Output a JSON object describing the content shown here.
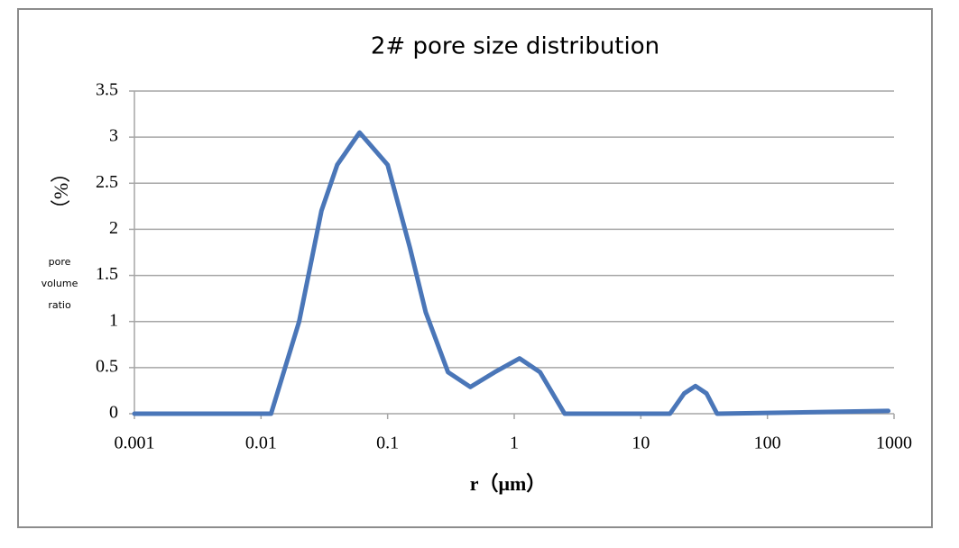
{
  "chart_data": {
    "type": "line",
    "title": "2# pore size distribution",
    "xlabel": "r（μm）",
    "ylabel_unit": "（%）",
    "ylabel_lines": [
      "pore",
      "volume",
      "ratio"
    ],
    "xscale": "log",
    "grid": true,
    "x": [
      0.001,
      0.012,
      0.02,
      0.03,
      0.04,
      0.06,
      0.1,
      0.15,
      0.2,
      0.3,
      0.45,
      0.7,
      1.1,
      1.6,
      2.5,
      17,
      22,
      27,
      33,
      40,
      900
    ],
    "series": [
      {
        "name": "pore volume ratio",
        "color": "#4a76b8",
        "values": [
          0,
          0,
          1.0,
          2.2,
          2.7,
          3.05,
          2.7,
          1.8,
          1.1,
          0.45,
          0.29,
          0.45,
          0.6,
          0.45,
          0,
          0,
          0.22,
          0.3,
          0.22,
          0,
          0.03
        ]
      }
    ],
    "xlim": [
      0.001,
      1000
    ],
    "xticks": [
      0.001,
      0.01,
      0.1,
      1,
      10,
      100,
      1000
    ],
    "ylim": [
      0,
      3.5
    ],
    "yticks": [
      0,
      0.5,
      1,
      1.5,
      2,
      2.5,
      3,
      3.5
    ]
  }
}
